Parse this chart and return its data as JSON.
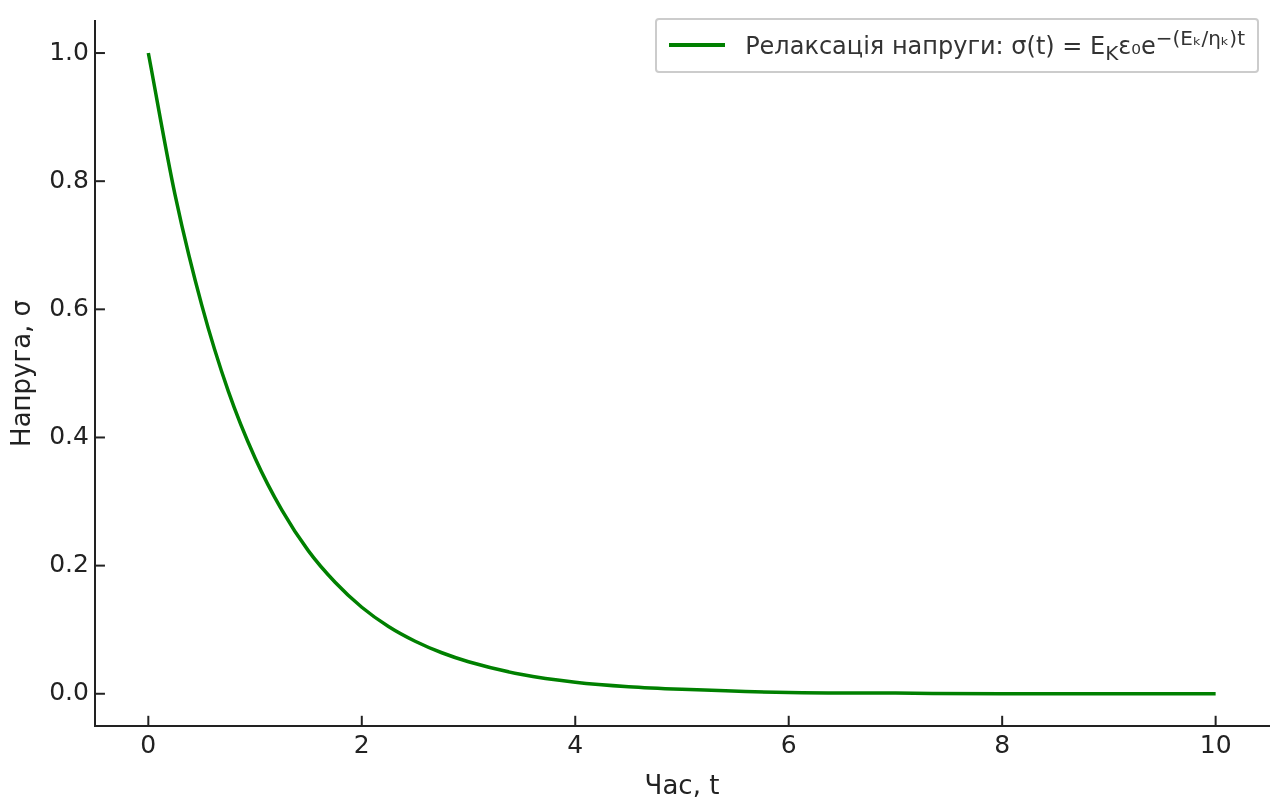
{
  "chart_data": {
    "type": "line",
    "xlabel": "Час, t",
    "ylabel": "Напруга, σ",
    "x": [
      0,
      0.25,
      0.5,
      0.75,
      1,
      1.25,
      1.5,
      1.75,
      2,
      2.25,
      2.5,
      2.75,
      3,
      3.5,
      4,
      4.5,
      5,
      6,
      7,
      8,
      9,
      10
    ],
    "series": [
      {
        "name": "Релаксація напруги: σ(t) = E$_{K}$ε₀e$^{−(Eₖ/ηₖ)t}$",
        "color": "#008000",
        "values": [
          1,
          0.779,
          0.607,
          0.472,
          0.368,
          0.287,
          0.223,
          0.174,
          0.135,
          0.105,
          0.082,
          0.064,
          0.05,
          0.03,
          0.018,
          0.011,
          0.007,
          0.002,
          0.001,
          0,
          0,
          0
        ]
      }
    ],
    "xlim": [
      -0.5,
      10.5
    ],
    "xticks": [
      0,
      2,
      4,
      6,
      8,
      10
    ],
    "ylim": [
      -0.05,
      1.05
    ],
    "yticks": [
      {
        "value": 0,
        "label": "0.0"
      },
      {
        "value": 0.2,
        "label": "0.2"
      },
      {
        "value": 0.4,
        "label": "0.4"
      },
      {
        "value": 0.6,
        "label": "0.6"
      },
      {
        "value": 0.8,
        "label": "0.8"
      },
      {
        "value": 1,
        "label": "1.0"
      }
    ],
    "legend": "top right",
    "marker": "none",
    "line_style": "solid"
  }
}
